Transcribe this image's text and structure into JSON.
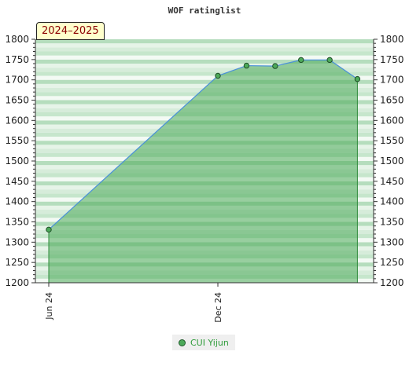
{
  "chart_data": {
    "type": "area",
    "title": "WOF ratinglist",
    "season_label": "2024–2025",
    "ylim": [
      1200,
      1800
    ],
    "y_ticks": [
      1200,
      1250,
      1300,
      1350,
      1400,
      1450,
      1500,
      1550,
      1600,
      1650,
      1700,
      1750,
      1800
    ],
    "x_ticks": [
      {
        "label": "Jun 24",
        "date": "2024-06-01"
      },
      {
        "label": "Dec 24",
        "date": "2024-12-01"
      }
    ],
    "series": [
      {
        "name": "CUI Yijun",
        "color": "#4daa5a",
        "line_color": "#4a90d9",
        "points": [
          {
            "date": "2024-06-01",
            "value": 1331
          },
          {
            "date": "2024-12-01",
            "value": 1710
          },
          {
            "date": "2025-01-01",
            "value": 1735
          },
          {
            "date": "2025-02-01",
            "value": 1734
          },
          {
            "date": "2025-03-01",
            "value": 1749
          },
          {
            "date": "2025-04-01",
            "value": 1749
          },
          {
            "date": "2025-05-01",
            "value": 1702
          }
        ]
      }
    ],
    "legend_position": "bottom-center",
    "grid": "banded"
  }
}
